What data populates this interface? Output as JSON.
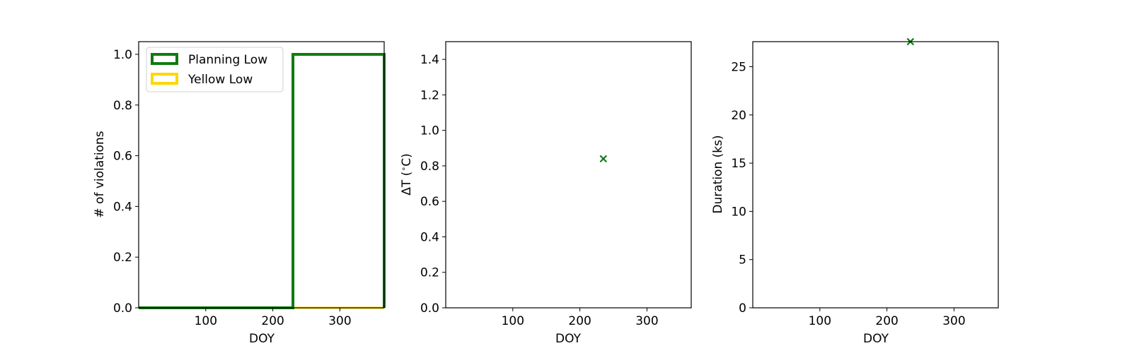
{
  "chart_data": [
    {
      "type": "histogram-step",
      "xlabel": "DOY",
      "ylabel": "# of violations",
      "xlim": [
        0,
        366
      ],
      "ylim": [
        0,
        1.05
      ],
      "xticks": [
        100,
        200,
        300
      ],
      "xtick_labels": [
        "100",
        "200",
        "300"
      ],
      "yticks": [
        0.0,
        0.2,
        0.4,
        0.6,
        0.8,
        1.0
      ],
      "ytick_labels": [
        "0.0",
        "0.2",
        "0.4",
        "0.6",
        "0.8",
        "1.0"
      ],
      "legend": {
        "placement": "upper-left"
      },
      "series": [
        {
          "name": "Planning Low",
          "color": "#107a10",
          "steps": [
            {
              "x0": 0,
              "x1": 230,
              "y": 0
            },
            {
              "x0": 230,
              "x1": 366,
              "y": 1
            }
          ]
        },
        {
          "name": "Yellow Low",
          "color": "#ffd700",
          "steps": [
            {
              "x0": 0,
              "x1": 366,
              "y": 0
            }
          ]
        }
      ]
    },
    {
      "type": "scatter",
      "xlabel": "DOY",
      "ylabel": "ΔT ($^\\circ$C)",
      "xlim": [
        0,
        366
      ],
      "ylim": [
        0,
        1.5
      ],
      "xticks": [
        100,
        200,
        300
      ],
      "xtick_labels": [
        "100",
        "200",
        "300"
      ],
      "yticks": [
        0.0,
        0.2,
        0.4,
        0.6,
        0.8,
        1.0,
        1.2,
        1.4
      ],
      "ytick_labels": [
        "0.0",
        "0.2",
        "0.4",
        "0.6",
        "0.8",
        "1.0",
        "1.2",
        "1.4"
      ],
      "series": [
        {
          "marker": "x",
          "color": "#107a10",
          "points": [
            {
              "x": 235,
              "y": 0.84
            }
          ]
        }
      ]
    },
    {
      "type": "scatter",
      "xlabel": "DOY",
      "ylabel": "Duration (ks)",
      "xlim": [
        0,
        366
      ],
      "ylim": [
        0,
        27.6
      ],
      "xticks": [
        100,
        200,
        300
      ],
      "xtick_labels": [
        "100",
        "200",
        "300"
      ],
      "yticks": [
        0,
        5,
        10,
        15,
        20,
        25
      ],
      "ytick_labels": [
        "0",
        "5",
        "10",
        "15",
        "20",
        "25"
      ],
      "series": [
        {
          "marker": "x",
          "color": "#107a10",
          "points": [
            {
              "x": 235,
              "y": 27.6
            }
          ]
        }
      ]
    }
  ]
}
